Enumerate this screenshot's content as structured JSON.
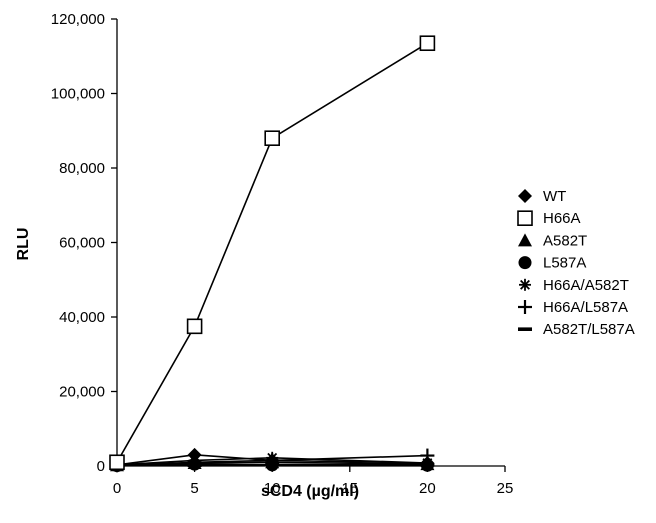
{
  "chart_data": {
    "type": "line",
    "title": "",
    "xlabel": "sCD4 (µg/ml)",
    "ylabel": "RLU",
    "xlim": [
      0,
      25
    ],
    "ylim": [
      0,
      120000
    ],
    "xticks": [
      0,
      5,
      10,
      15,
      20,
      25
    ],
    "xtick_labels": [
      "0",
      "5",
      "10",
      "15",
      "20",
      "25"
    ],
    "yticks": [
      0,
      20000,
      40000,
      60000,
      80000,
      100000,
      120000
    ],
    "ytick_labels": [
      "0",
      "20,000",
      "40,000",
      "60,000",
      "80,000",
      "100,000",
      "120,000"
    ],
    "grid": false,
    "legend_position": "right",
    "x": [
      0,
      5,
      10,
      20
    ],
    "series": [
      {
        "name": "WT",
        "marker": "diamond",
        "color": "#000000",
        "values": [
          300,
          3000,
          1500,
          800
        ]
      },
      {
        "name": "H66A",
        "marker": "square-open",
        "color": "#000000",
        "values": [
          1000,
          37500,
          88000,
          113500
        ]
      },
      {
        "name": "A582T",
        "marker": "triangle",
        "color": "#000000",
        "values": [
          200,
          800,
          1000,
          500
        ]
      },
      {
        "name": "L587A",
        "marker": "circle",
        "color": "#000000",
        "values": [
          100,
          500,
          300,
          200
        ]
      },
      {
        "name": "H66A/A582T",
        "marker": "asterisk",
        "color": "#000000",
        "values": [
          300,
          1500,
          2200,
          800
        ]
      },
      {
        "name": "H66A/L587A",
        "marker": "plus",
        "color": "#000000",
        "values": [
          200,
          1000,
          1500,
          2800
        ]
      },
      {
        "name": "A582T/L587A",
        "marker": "dash",
        "color": "#000000",
        "values": [
          100,
          200,
          400,
          300
        ]
      }
    ]
  }
}
